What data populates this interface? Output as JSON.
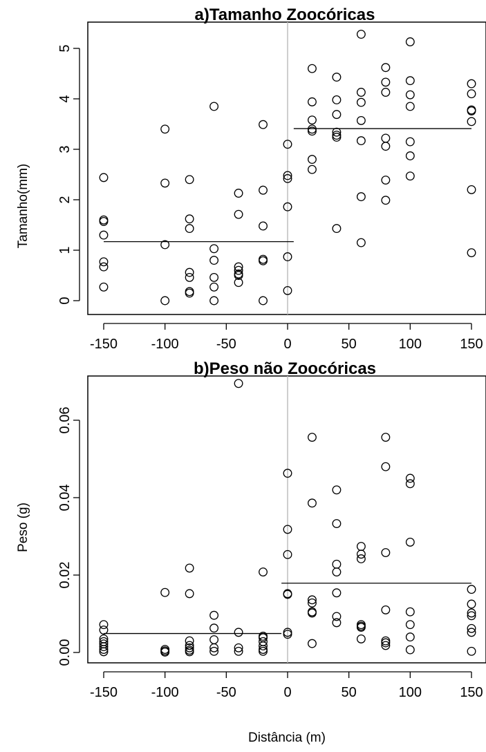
{
  "chart_data": [
    {
      "type": "scatter",
      "title": "a)Tamanho Zoocóricas",
      "xlabel": "",
      "ylabel": "Tamanho(mm)",
      "xlim": [
        -155,
        155
      ],
      "ylim": [
        -0.1,
        5.35
      ],
      "xticks": [
        "-150",
        "-100",
        "-50",
        "0",
        "50",
        "100",
        "150"
      ],
      "xtick_values": [
        -150,
        -100,
        -50,
        0,
        50,
        100,
        150
      ],
      "yticks": [
        "0",
        "1",
        "2",
        "3",
        "4",
        "5"
      ],
      "ytick_values": [
        0,
        1,
        2,
        3,
        4,
        5
      ],
      "vertical_reference_line": {
        "x": 0,
        "color": "#bdbdbd"
      },
      "segments": [
        {
          "x": [
            -150,
            5
          ],
          "y": [
            1.17,
            1.17
          ]
        },
        {
          "x": [
            5,
            150
          ],
          "y": [
            3.41,
            3.41
          ]
        }
      ],
      "points": [
        [
          -150,
          2.44
        ],
        [
          -150,
          1.6
        ],
        [
          -150,
          1.57
        ],
        [
          -150,
          1.3
        ],
        [
          -150,
          0.77
        ],
        [
          -150,
          0.67
        ],
        [
          -150,
          0.27
        ],
        [
          -100,
          3.4
        ],
        [
          -100,
          2.33
        ],
        [
          -100,
          1.11
        ],
        [
          -100,
          0.0
        ],
        [
          -80,
          2.4
        ],
        [
          -80,
          1.62
        ],
        [
          -80,
          1.43
        ],
        [
          -80,
          0.56
        ],
        [
          -80,
          0.46
        ],
        [
          -80,
          0.18
        ],
        [
          -80,
          0.15
        ],
        [
          -60,
          3.85
        ],
        [
          -60,
          1.03
        ],
        [
          -60,
          0.8
        ],
        [
          -60,
          0.46
        ],
        [
          -60,
          0.27
        ],
        [
          -60,
          0.0
        ],
        [
          -40,
          2.13
        ],
        [
          -40,
          1.71
        ],
        [
          -40,
          0.67
        ],
        [
          -40,
          0.6
        ],
        [
          -40,
          0.53
        ],
        [
          -40,
          0.5
        ],
        [
          -40,
          0.36
        ],
        [
          -20,
          3.49
        ],
        [
          -20,
          2.19
        ],
        [
          -20,
          1.48
        ],
        [
          -20,
          0.82
        ],
        [
          -20,
          0.79
        ],
        [
          -20,
          0.0
        ],
        [
          0,
          3.1
        ],
        [
          0,
          2.48
        ],
        [
          0,
          2.42
        ],
        [
          0,
          1.86
        ],
        [
          0,
          0.87
        ],
        [
          0,
          0.2
        ],
        [
          20,
          4.6
        ],
        [
          20,
          3.94
        ],
        [
          20,
          3.58
        ],
        [
          20,
          3.4
        ],
        [
          20,
          3.36
        ],
        [
          20,
          2.8
        ],
        [
          20,
          2.6
        ],
        [
          40,
          4.43
        ],
        [
          40,
          3.98
        ],
        [
          40,
          3.69
        ],
        [
          40,
          3.34
        ],
        [
          40,
          3.28
        ],
        [
          40,
          3.24
        ],
        [
          40,
          1.43
        ],
        [
          60,
          5.28
        ],
        [
          60,
          4.13
        ],
        [
          60,
          3.93
        ],
        [
          60,
          3.57
        ],
        [
          60,
          3.17
        ],
        [
          60,
          2.06
        ],
        [
          60,
          1.15
        ],
        [
          80,
          4.62
        ],
        [
          80,
          4.33
        ],
        [
          80,
          4.13
        ],
        [
          80,
          3.22
        ],
        [
          80,
          3.06
        ],
        [
          80,
          2.39
        ],
        [
          80,
          1.99
        ],
        [
          100,
          5.13
        ],
        [
          100,
          4.36
        ],
        [
          100,
          4.08
        ],
        [
          100,
          3.85
        ],
        [
          100,
          3.15
        ],
        [
          100,
          2.87
        ],
        [
          100,
          2.47
        ],
        [
          150,
          4.3
        ],
        [
          150,
          4.1
        ],
        [
          150,
          3.78
        ],
        [
          150,
          3.76
        ],
        [
          150,
          3.55
        ],
        [
          150,
          2.2
        ],
        [
          150,
          0.95
        ]
      ]
    },
    {
      "type": "scatter",
      "title": "b)Peso não Zoocóricas",
      "xlabel": "Distância (m)",
      "ylabel": "Peso (g)",
      "xlim": [
        -155,
        155
      ],
      "ylim": [
        -0.0015,
        0.0715
      ],
      "xticks": [
        "-150",
        "-100",
        "-50",
        "0",
        "50",
        "100",
        "150"
      ],
      "xtick_values": [
        -150,
        -100,
        -50,
        0,
        50,
        100,
        150
      ],
      "yticks": [
        "0.00",
        "0.02",
        "0.04",
        "0.06"
      ],
      "ytick_values": [
        0,
        0.02,
        0.04,
        0.06
      ],
      "vertical_reference_line": {
        "x": 0,
        "color": "#bdbdbd"
      },
      "segments": [
        {
          "x": [
            -150,
            -5
          ],
          "y": [
            0.0049,
            0.0049
          ]
        },
        {
          "x": [
            -5,
            150
          ],
          "y": [
            0.0179,
            0.0179
          ]
        }
      ],
      "points": [
        [
          -150,
          0.0072
        ],
        [
          -150,
          0.0058
        ],
        [
          -150,
          0.0035
        ],
        [
          -150,
          0.0028
        ],
        [
          -150,
          0.0022
        ],
        [
          -150,
          0.0015
        ],
        [
          -150,
          0.0008
        ],
        [
          -150,
          0.0002
        ],
        [
          -100,
          0.0155
        ],
        [
          -100,
          0.0008
        ],
        [
          -100,
          0.0004
        ],
        [
          -100,
          0.0001
        ],
        [
          -80,
          0.0218
        ],
        [
          -80,
          0.0152
        ],
        [
          -80,
          0.003
        ],
        [
          -80,
          0.0018
        ],
        [
          -80,
          0.0012
        ],
        [
          -80,
          0.0006
        ],
        [
          -80,
          0.0002
        ],
        [
          -60,
          0.0096
        ],
        [
          -60,
          0.0063
        ],
        [
          -60,
          0.0033
        ],
        [
          -60,
          0.0012
        ],
        [
          -60,
          0.0003
        ],
        [
          -40,
          0.0695
        ],
        [
          -40,
          0.0052
        ],
        [
          -40,
          0.0012
        ],
        [
          -40,
          0.0003
        ],
        [
          -20,
          0.0208
        ],
        [
          -20,
          0.0042
        ],
        [
          -20,
          0.0038
        ],
        [
          -20,
          0.0028
        ],
        [
          -20,
          0.0017
        ],
        [
          -20,
          0.0008
        ],
        [
          -20,
          0.0003
        ],
        [
          0,
          0.0463
        ],
        [
          0,
          0.0318
        ],
        [
          0,
          0.0253
        ],
        [
          0,
          0.0152
        ],
        [
          0,
          0.015
        ],
        [
          0,
          0.0052
        ],
        [
          0,
          0.0047
        ],
        [
          20,
          0.0556
        ],
        [
          20,
          0.0386
        ],
        [
          20,
          0.0136
        ],
        [
          20,
          0.0128
        ],
        [
          20,
          0.0105
        ],
        [
          20,
          0.0102
        ],
        [
          20,
          0.0023
        ],
        [
          40,
          0.042
        ],
        [
          40,
          0.0333
        ],
        [
          40,
          0.0228
        ],
        [
          40,
          0.0208
        ],
        [
          40,
          0.0154
        ],
        [
          40,
          0.0093
        ],
        [
          40,
          0.0077
        ],
        [
          60,
          0.0274
        ],
        [
          60,
          0.0254
        ],
        [
          60,
          0.0242
        ],
        [
          60,
          0.0072
        ],
        [
          60,
          0.0068
        ],
        [
          60,
          0.0065
        ],
        [
          60,
          0.0035
        ],
        [
          80,
          0.0556
        ],
        [
          80,
          0.048
        ],
        [
          80,
          0.0258
        ],
        [
          80,
          0.011
        ],
        [
          80,
          0.003
        ],
        [
          80,
          0.0025
        ],
        [
          80,
          0.0018
        ],
        [
          100,
          0.045
        ],
        [
          100,
          0.0436
        ],
        [
          100,
          0.0285
        ],
        [
          100,
          0.0105
        ],
        [
          100,
          0.0072
        ],
        [
          100,
          0.004
        ],
        [
          100,
          0.0007
        ],
        [
          150,
          0.0163
        ],
        [
          150,
          0.0125
        ],
        [
          150,
          0.0102
        ],
        [
          150,
          0.0095
        ],
        [
          150,
          0.0062
        ],
        [
          150,
          0.0052
        ],
        [
          150,
          0.0003
        ]
      ]
    }
  ]
}
